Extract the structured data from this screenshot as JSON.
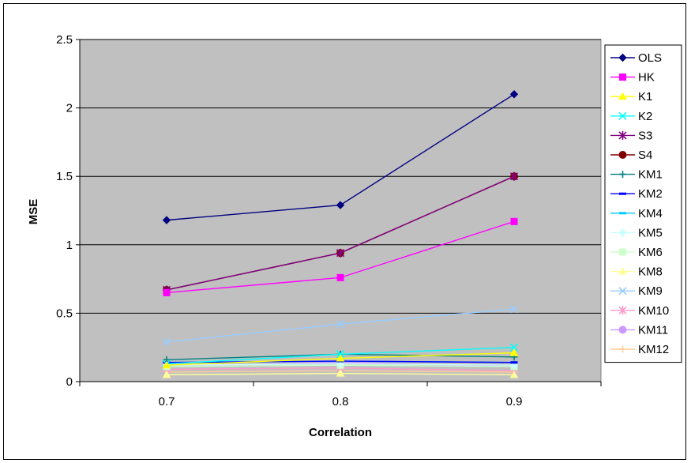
{
  "chart_data": {
    "type": "line",
    "title": "",
    "xlabel": "Correlation",
    "ylabel": "MSE",
    "categories": [
      "0.7",
      "0.8",
      "0.9"
    ],
    "ylim": [
      0,
      2.5
    ],
    "yticks": [
      "0",
      "0.5",
      "1",
      "1.5",
      "2",
      "2.5"
    ],
    "grid": true,
    "plot_background": "#c0c0c0",
    "legend_position": "right",
    "series": [
      {
        "name": "OLS",
        "color": "#000080",
        "marker": "diamond",
        "values": [
          1.18,
          1.29,
          2.1
        ]
      },
      {
        "name": "HK",
        "color": "#ff00ff",
        "marker": "square",
        "values": [
          0.65,
          0.76,
          1.17
        ]
      },
      {
        "name": "K1",
        "color": "#ffff00",
        "marker": "triangle",
        "values": [
          0.12,
          0.17,
          0.21
        ]
      },
      {
        "name": "K2",
        "color": "#00ffff",
        "marker": "x",
        "values": [
          0.13,
          0.2,
          0.25
        ]
      },
      {
        "name": "S3",
        "color": "#800080",
        "marker": "star",
        "values": [
          0.67,
          0.94,
          1.5
        ]
      },
      {
        "name": "S4",
        "color": "#800000",
        "marker": "circle",
        "values": [
          0.67,
          0.94,
          1.5
        ]
      },
      {
        "name": "KM1",
        "color": "#008080",
        "marker": "plus",
        "values": [
          0.16,
          0.2,
          0.18
        ]
      },
      {
        "name": "KM2",
        "color": "#0000ff",
        "marker": "dash",
        "values": [
          0.14,
          0.15,
          0.14
        ]
      },
      {
        "name": "KM4",
        "color": "#00ccff",
        "marker": "dash",
        "values": [
          0.14,
          0.15,
          0.14
        ]
      },
      {
        "name": "KM5",
        "color": "#ccffff",
        "marker": "diamond",
        "values": [
          0.12,
          0.13,
          0.12
        ]
      },
      {
        "name": "KM6",
        "color": "#ccffcc",
        "marker": "square",
        "values": [
          0.11,
          0.12,
          0.11
        ]
      },
      {
        "name": "KM8",
        "color": "#ffff99",
        "marker": "triangle",
        "values": [
          0.05,
          0.06,
          0.05
        ]
      },
      {
        "name": "KM9",
        "color": "#99ccff",
        "marker": "x",
        "values": [
          0.29,
          0.42,
          0.53
        ]
      },
      {
        "name": "KM10",
        "color": "#ff99cc",
        "marker": "star",
        "values": [
          0.09,
          0.1,
          0.08
        ]
      },
      {
        "name": "KM11",
        "color": "#cc99ff",
        "marker": "circle",
        "values": [
          0.11,
          0.14,
          0.11
        ]
      },
      {
        "name": "KM12",
        "color": "#ffcc99",
        "marker": "plus",
        "values": [
          0.07,
          0.08,
          0.07
        ]
      }
    ]
  }
}
